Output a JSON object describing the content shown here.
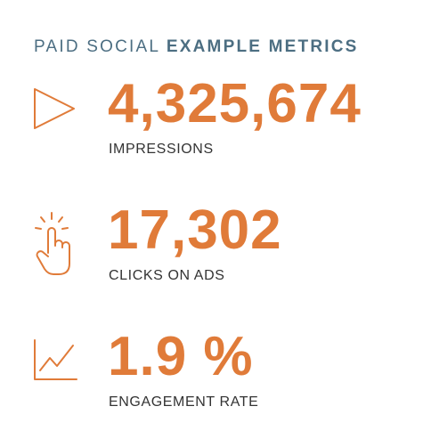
{
  "heading": {
    "light": "PAID SOCIAL",
    "bold": "EXAMPLE METRICS"
  },
  "colors": {
    "accent": "#e07b39",
    "heading": "#4c6e82",
    "label": "#333333"
  },
  "metrics": [
    {
      "icon": "play-triangle-icon",
      "value": "4,325,674",
      "label": "IMPRESSIONS"
    },
    {
      "icon": "pointing-hand-click-icon",
      "value": "17,302",
      "label": "CLICKS ON ADS"
    },
    {
      "icon": "line-chart-icon",
      "value": "1.9 %",
      "label": "ENGAGEMENT RATE"
    }
  ]
}
